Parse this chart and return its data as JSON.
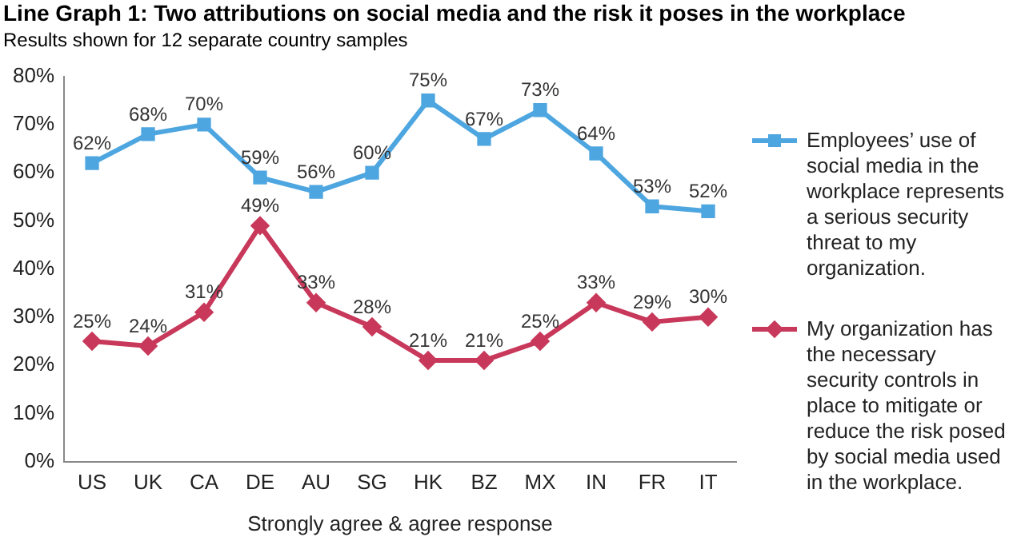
{
  "chart_data": {
    "type": "line",
    "title": "Line Graph 1: Two attributions on social media and the risk it poses in the workplace",
    "subtitle": "Results shown for 12 separate country samples",
    "xlabel": "Strongly agree & agree response",
    "categories": [
      "US",
      "UK",
      "CA",
      "DE",
      "AU",
      "SG",
      "HK",
      "BZ",
      "MX",
      "IN",
      "FR",
      "IT"
    ],
    "series": [
      {
        "name": "Employees’ use of social media in the workplace represents a serious security threat to my organization.",
        "color": "#4ea6e0",
        "marker": "square",
        "values": [
          62,
          68,
          70,
          59,
          56,
          60,
          75,
          67,
          73,
          64,
          53,
          52
        ],
        "value_labels": [
          "62%",
          "68%",
          "70%",
          "59%",
          "56%",
          "60%",
          "75%",
          "67%",
          "73%",
          "64%",
          "53%",
          "52%"
        ]
      },
      {
        "name": "My organization has the necessary security controls in place to mitigate or reduce the risk posed by social media used in the workplace.",
        "color": "#c8385a",
        "marker": "diamond",
        "values": [
          25,
          24,
          31,
          49,
          33,
          28,
          21,
          21,
          25,
          33,
          29,
          30
        ],
        "value_labels": [
          "25%",
          "24%",
          "31%",
          "49%",
          "33%",
          "28%",
          "21%",
          "21%",
          "25%",
          "33%",
          "29%",
          "30%"
        ]
      }
    ],
    "ylim": [
      0,
      80
    ],
    "yticks": [
      {
        "value": 0,
        "label": "0%"
      },
      {
        "value": 10,
        "label": "10%"
      },
      {
        "value": 20,
        "label": "20%"
      },
      {
        "value": 30,
        "label": "30%"
      },
      {
        "value": 40,
        "label": "40%"
      },
      {
        "value": 50,
        "label": "50%"
      },
      {
        "value": 60,
        "label": "60%"
      },
      {
        "value": 70,
        "label": "70%"
      },
      {
        "value": 80,
        "label": "80%"
      }
    ],
    "grid": false,
    "legend": "right",
    "line_style": "solid"
  }
}
